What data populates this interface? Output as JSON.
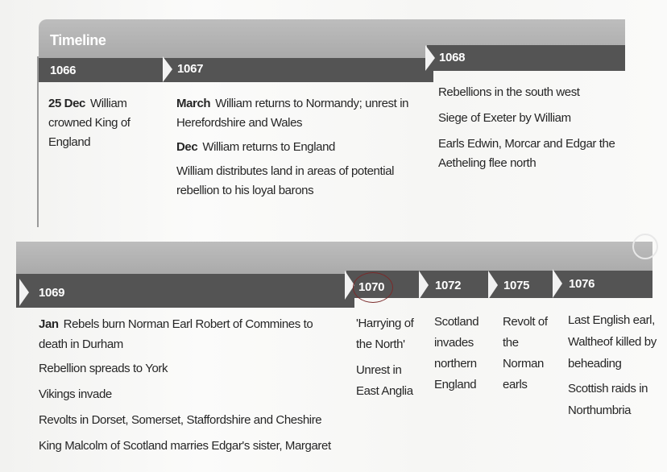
{
  "top": {
    "title": "Timeline",
    "columns": [
      {
        "year": "1066",
        "entries": [
          {
            "label": "25 Dec",
            "text": "William crowned King of England"
          }
        ]
      },
      {
        "year": "1067",
        "entries": [
          {
            "label": "March",
            "text": "William returns to Normandy; unrest in Herefordshire and Wales"
          },
          {
            "label": "Dec",
            "text": "William returns to England"
          },
          {
            "label": "",
            "text": "William distributes land in areas of potential rebellion to his loyal barons"
          }
        ]
      },
      {
        "year": "1068",
        "entries": [
          {
            "label": "",
            "text": "Rebellions in the south west"
          },
          {
            "label": "",
            "text": "Siege of Exeter by William"
          },
          {
            "label": "",
            "text": "Earls Edwin, Morcar and Edgar the Aetheling flee north"
          }
        ]
      }
    ]
  },
  "bottom": {
    "columns": [
      {
        "year": "1069",
        "entries": [
          {
            "label": "Jan",
            "text": "Rebels burn Norman Earl Robert of Commines to death in Durham"
          },
          {
            "label": "",
            "text": "Rebellion spreads to York"
          },
          {
            "label": "",
            "text": "Vikings invade"
          },
          {
            "label": "",
            "text": "Revolts in Dorset, Somerset, Staffordshire and Cheshire"
          },
          {
            "label": "",
            "text": "King Malcolm of Scotland marries Edgar's sister, Margaret"
          }
        ]
      },
      {
        "year": "1070",
        "circled": true,
        "entries": [
          {
            "label": "",
            "text": "'Harrying of the North'"
          },
          {
            "label": "",
            "text": "Unrest in East Anglia"
          }
        ]
      },
      {
        "year": "1072",
        "entries": [
          {
            "label": "",
            "text": "Scotland invades northern England"
          }
        ]
      },
      {
        "year": "1075",
        "entries": [
          {
            "label": "",
            "text": "Revolt of the Norman earls"
          }
        ]
      },
      {
        "year": "1076",
        "entries": [
          {
            "label": "",
            "text": "Last English earl, Waltheof killed by beheading"
          },
          {
            "label": "",
            "text": "Scottish raids in Northumbria"
          }
        ]
      }
    ]
  },
  "colors": {
    "band": "#b3b3b3",
    "bar": "#545454",
    "annotation_circle": "#7a2a2a"
  }
}
